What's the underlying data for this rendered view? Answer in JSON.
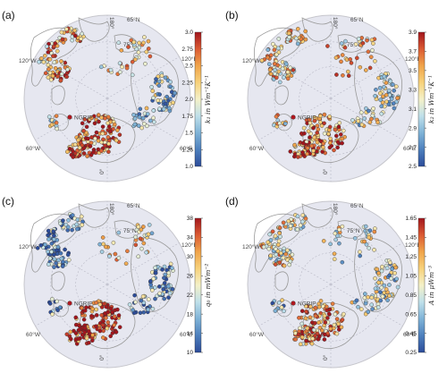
{
  "figure": {
    "grid_labels": {
      "lat": [
        "65°N",
        "75°N"
      ],
      "lon": [
        "180°",
        "0°",
        "120°W",
        "60°W",
        "120°E",
        "60°E"
      ]
    },
    "station_label": "NGRIP",
    "colors": {
      "disk": "#e6e7f0",
      "land_line": "#9a9a9a",
      "outline": "#c6c6cc",
      "grid": "#b9b9c6",
      "station": "#b0171f",
      "scale": [
        "#2c4c9a",
        "#4d7fbd",
        "#7fb3d7",
        "#bfe0ea",
        "#f4f1c8",
        "#f7d27b",
        "#f0a44a",
        "#db5a33",
        "#a3161d"
      ]
    },
    "panels": [
      {
        "label": "(a)",
        "var": "k₁",
        "unit_prefix": " in ",
        "unit": "Wm⁻¹K⁻¹",
        "ticks": [
          "3.0",
          "2.75",
          "2.5",
          "2.25",
          "2.0",
          "1.75",
          "1.5",
          "1.25",
          "1.0"
        ],
        "weights": {
          "na": 0.7,
          "eu": 0.82,
          "as": 0.35,
          "gr": 0.5,
          "ar": 0.6
        }
      },
      {
        "label": "(b)",
        "var": "k₂",
        "unit_prefix": " in ",
        "unit": "Wm⁻¹K⁻¹",
        "ticks": [
          "3.9",
          "3.7",
          "3.5",
          "3.3",
          "3.1",
          "2.9",
          "2.7",
          "2.5"
        ],
        "weights": {
          "na": 0.6,
          "eu": 0.82,
          "as": 0.48,
          "gr": 0.55,
          "ar": 0.6
        }
      },
      {
        "label": "(c)",
        "var": "q₀",
        "unit_prefix": " in ",
        "unit": "mWm⁻²",
        "ticks": [
          "38",
          "34",
          "30",
          "26",
          "22",
          "18",
          "14",
          "10"
        ],
        "weights": {
          "na": 0.22,
          "eu": 0.95,
          "as": 0.22,
          "gr": 0.2,
          "ar": 0.55
        }
      },
      {
        "label": "(d)",
        "var": "A",
        "unit_prefix": " in ",
        "unit": "μWm⁻³",
        "ticks": [
          "1.65",
          "1.45",
          "1.25",
          "1.05",
          "0.85",
          "0.65",
          "0.45",
          "0.25"
        ],
        "weights": {
          "na": 0.55,
          "eu": 0.75,
          "as": 0.42,
          "gr": 0.3,
          "ar": 0.45
        }
      }
    ]
  }
}
